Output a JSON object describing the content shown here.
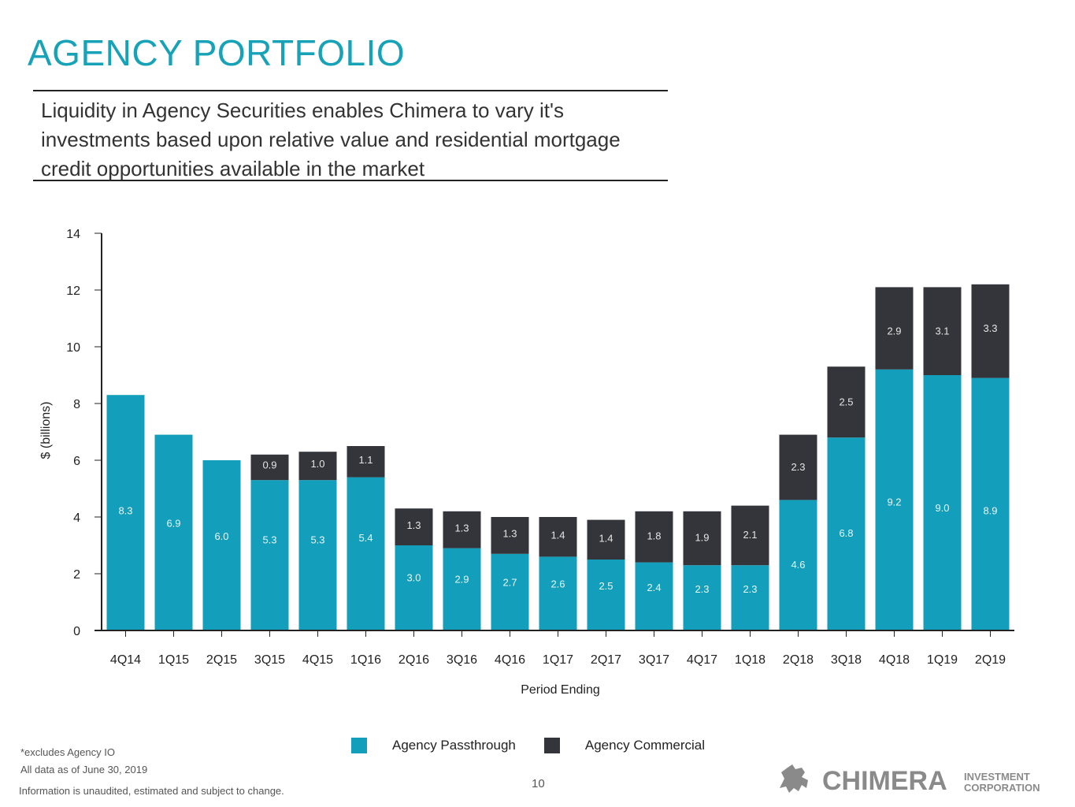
{
  "slide": {
    "title": "AGENCY PORTFOLIO",
    "subtitle": "Liquidity in Agency Securities enables Chimera to vary it's investments based upon relative value and residential mortgage credit opportunities available in the market",
    "footnote": "*excludes Agency IO",
    "as_of": "All data as of June 30, 2019",
    "disclaimer": "Information is unaudited, estimated and subject to change.",
    "page_number": "10",
    "logo": {
      "name": "CHIMERA",
      "line1": "INVESTMENT",
      "line2": "CORPORATION"
    }
  },
  "colors": {
    "title": "#17a2b8",
    "passthrough": "#139fbc",
    "commercial": "#34353b",
    "axis": "#222222"
  },
  "chart_data": {
    "type": "bar",
    "stacked": true,
    "title": "",
    "xlabel": "Period Ending",
    "ylabel": "$ (billions)",
    "ylim": [
      0,
      14
    ],
    "yticks": [
      0,
      2,
      4,
      6,
      8,
      10,
      12,
      14
    ],
    "categories": [
      "4Q14",
      "1Q15",
      "2Q15",
      "3Q15",
      "4Q15",
      "1Q16",
      "2Q16",
      "3Q16",
      "4Q16",
      "1Q17",
      "2Q17",
      "3Q17",
      "4Q17",
      "1Q18",
      "2Q18",
      "3Q18",
      "4Q18",
      "1Q19",
      "2Q19"
    ],
    "series": [
      {
        "name": "Agency Passthrough",
        "values": [
          8.3,
          6.9,
          6.0,
          5.3,
          5.3,
          5.4,
          3.0,
          2.9,
          2.7,
          2.6,
          2.5,
          2.4,
          2.3,
          2.3,
          4.6,
          6.8,
          9.2,
          9.0,
          8.9
        ]
      },
      {
        "name": "Agency Commercial",
        "values": [
          null,
          null,
          null,
          0.9,
          1.0,
          1.1,
          1.3,
          1.3,
          1.3,
          1.4,
          1.4,
          1.8,
          1.9,
          2.1,
          2.3,
          2.5,
          2.9,
          3.1,
          3.3
        ]
      }
    ],
    "legend": "bottom-center"
  }
}
